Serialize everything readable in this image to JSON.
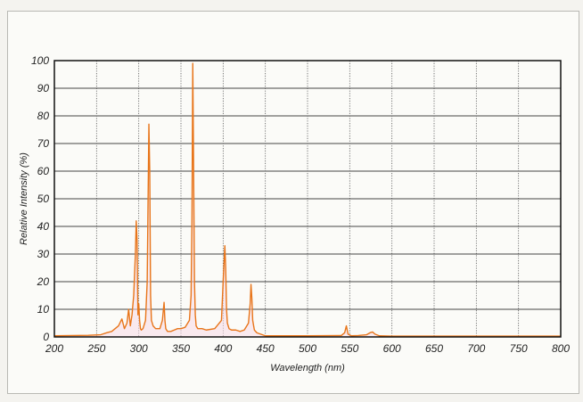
{
  "chart_data": {
    "type": "line",
    "title": "",
    "xlabel": "Wavelength (nm)",
    "ylabel": "Relative Intensity (%)",
    "xlim": [
      200,
      800
    ],
    "ylim": [
      0,
      100
    ],
    "x_ticks": [
      "200",
      "250",
      "300",
      "350",
      "400",
      "450",
      "500",
      "550",
      "600",
      "650",
      "700",
      "750",
      "800"
    ],
    "y_ticks": [
      "0",
      "10",
      "20",
      "30",
      "40",
      "50",
      "60",
      "70",
      "80",
      "90",
      "100"
    ],
    "grid": true,
    "line_color": "#e8751a",
    "fill_color": "#f7dbe6",
    "series": [
      {
        "x": [
          200,
          220,
          240,
          255,
          262,
          268,
          272,
          276,
          280,
          283,
          286,
          288,
          290,
          292,
          294,
          296,
          297,
          298,
          299,
          300,
          301,
          302,
          303,
          305,
          308,
          310,
          312,
          313,
          314,
          315,
          317,
          320,
          325,
          328,
          330,
          331,
          332,
          334,
          338,
          342,
          346,
          350,
          355,
          360,
          362,
          363,
          364,
          365,
          366,
          367,
          368,
          370,
          375,
          380,
          390,
          398,
          400,
          402,
          403,
          404,
          405,
          407,
          410,
          415,
          420,
          425,
          430,
          432,
          433,
          434,
          435,
          437,
          440,
          450,
          500,
          540,
          544,
          546,
          548,
          552,
          560,
          570,
          574,
          577,
          580,
          585,
          600,
          650,
          700,
          750,
          800
        ],
        "y": [
          0.4,
          0.5,
          0.6,
          0.8,
          1.5,
          2,
          3,
          4,
          6.5,
          3,
          5,
          10,
          4,
          8,
          15,
          30,
          42,
          35,
          8,
          12,
          6,
          3,
          2.5,
          3,
          6,
          20,
          77,
          60,
          15,
          6,
          4,
          3,
          3,
          6,
          12.5,
          6,
          3,
          2,
          2,
          2.5,
          3,
          3,
          3.5,
          6,
          15,
          40,
          99,
          60,
          20,
          8,
          4,
          3,
          3,
          2.5,
          3,
          6,
          20,
          33,
          25,
          10,
          5,
          3,
          2.5,
          2.5,
          2,
          2.5,
          5,
          12,
          19,
          14,
          6,
          2.5,
          1.5,
          0.4,
          0.4,
          0.5,
          1.5,
          4,
          1,
          0.4,
          0.5,
          0.8,
          1.5,
          1.8,
          1,
          0.4,
          0.3,
          0.3,
          0.3,
          0.3,
          0.3
        ]
      }
    ]
  }
}
